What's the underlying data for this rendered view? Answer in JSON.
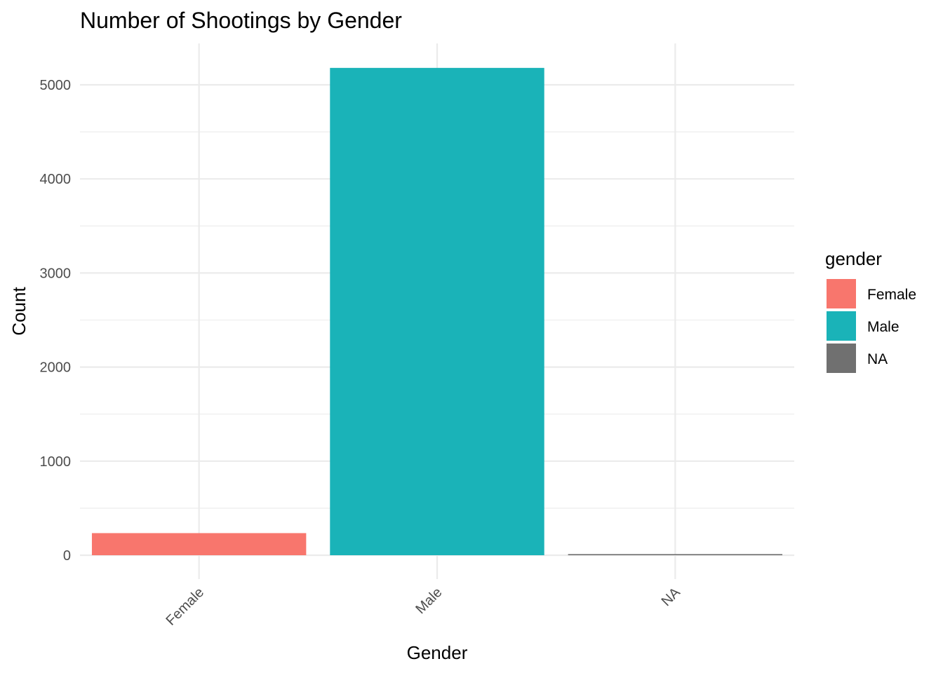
{
  "chart_data": {
    "type": "bar",
    "title": "Number of Shootings by Gender",
    "xlabel": "Gender",
    "ylabel": "Count",
    "categories": [
      "Female",
      "Male",
      "NA"
    ],
    "values": [
      235,
      5180,
      12
    ],
    "colors": [
      "#F8766D",
      "#1AB3B8",
      "#707070"
    ],
    "ylim": [
      0,
      5400
    ],
    "yticks": [
      0,
      1000,
      2000,
      3000,
      4000,
      5000
    ],
    "ytick_labels": [
      "0",
      "1000",
      "2000",
      "3000",
      "4000",
      "5000"
    ],
    "grid": true,
    "legend": {
      "title": "gender",
      "position": "right",
      "entries": [
        "Female",
        "Male",
        "NA"
      ]
    }
  }
}
